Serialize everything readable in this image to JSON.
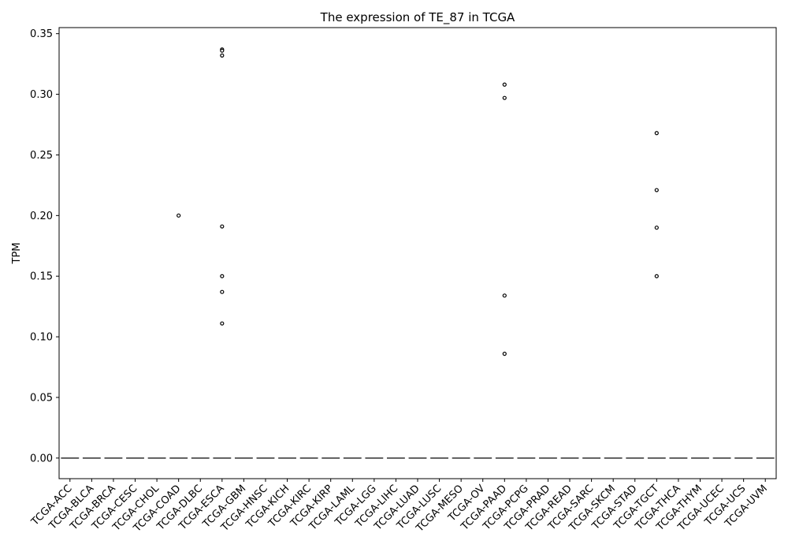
{
  "chart_data": {
    "type": "box",
    "title": "The expression of TE_87 in TCGA",
    "xlabel": "",
    "ylabel": "TPM",
    "ylim": [
      -0.017,
      0.355
    ],
    "yticks": [
      0.0,
      0.05,
      0.1,
      0.15,
      0.2,
      0.25,
      0.3,
      0.35
    ],
    "ytick_labels": [
      "0.00",
      "0.05",
      "0.10",
      "0.15",
      "0.20",
      "0.25",
      "0.30",
      "0.35"
    ],
    "grid": false,
    "legend": "none",
    "categories": [
      "TCGA-ACC",
      "TCGA-BLCA",
      "TCGA-BRCA",
      "TCGA-CESC",
      "TCGA-CHOL",
      "TCGA-COAD",
      "TCGA-DLBC",
      "TCGA-ESCA",
      "TCGA-GBM",
      "TCGA-HNSC",
      "TCGA-KICH",
      "TCGA-KIRC",
      "TCGA-KIRP",
      "TCGA-LAML",
      "TCGA-LGG",
      "TCGA-LIHC",
      "TCGA-LUAD",
      "TCGA-LUSC",
      "TCGA-MESO",
      "TCGA-OV",
      "TCGA-PAAD",
      "TCGA-PCPG",
      "TCGA-PRAD",
      "TCGA-READ",
      "TCGA-SARC",
      "TCGA-SKCM",
      "TCGA-STAD",
      "TCGA-TGCT",
      "TCGA-THCA",
      "TCGA-THYM",
      "TCGA-UCEC",
      "TCGA-UCS",
      "TCGA-UVM"
    ],
    "median": 0.0,
    "q1": 0.0,
    "q3": 0.0,
    "outliers": [
      {
        "category": "TCGA-COAD",
        "values": [
          0.2
        ]
      },
      {
        "category": "TCGA-ESCA",
        "values": [
          0.337,
          0.336,
          0.332,
          0.191,
          0.15,
          0.137,
          0.111
        ]
      },
      {
        "category": "TCGA-PAAD",
        "values": [
          0.308,
          0.297,
          0.134,
          0.086
        ]
      },
      {
        "category": "TCGA-TGCT",
        "values": [
          0.268,
          0.221,
          0.19,
          0.15
        ]
      }
    ],
    "colors": {
      "box": "#4c72b0",
      "median_line": "#555555",
      "outlier_edge": "#000000",
      "axis": "#000000"
    }
  }
}
